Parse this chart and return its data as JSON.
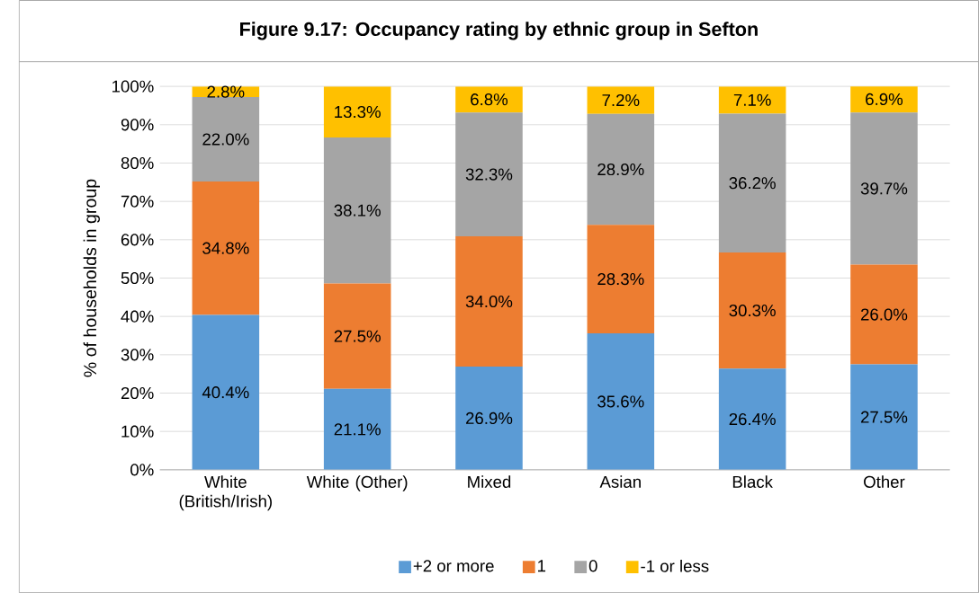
{
  "chart_data": {
    "type": "bar",
    "stacked": true,
    "title": "Figure 9.17: Occupancy rating by ethnic group in Sefton",
    "ylabel": "% of households in group",
    "categories": [
      "White (British/Irish)",
      "White (Other)",
      "Mixed",
      "Asian",
      "Black",
      "Other"
    ],
    "series": [
      {
        "name": "+2 or more",
        "color": "#5b9bd5",
        "values": [
          40.4,
          21.1,
          26.9,
          35.6,
          26.4,
          27.5
        ],
        "value_labels": [
          "40.4%",
          "21.1%",
          "26.9%",
          "35.6%",
          "26.4%",
          "27.5%"
        ]
      },
      {
        "name": "1",
        "color": "#ed7d31",
        "values": [
          34.8,
          27.5,
          34.0,
          28.3,
          30.3,
          26.0
        ],
        "value_labels": [
          "34.8%",
          "27.5%",
          "34.0%",
          "28.3%",
          "30.3%",
          "26.0%"
        ]
      },
      {
        "name": "0",
        "color": "#a5a5a5",
        "values": [
          22.0,
          38.1,
          32.3,
          28.9,
          36.2,
          39.7
        ],
        "value_labels": [
          "22.0%",
          "38.1%",
          "32.3%",
          "28.9%",
          "36.2%",
          "39.7%"
        ]
      },
      {
        "name": "-1 or less",
        "color": "#ffc000",
        "values": [
          2.8,
          13.3,
          6.8,
          7.2,
          7.1,
          6.9
        ],
        "value_labels": [
          "2.8%",
          "13.3%",
          "6.8%",
          "7.2%",
          "7.1%",
          "6.9%"
        ]
      }
    ],
    "ylim": [
      0,
      100
    ],
    "yticks": [
      {
        "value": 0,
        "label": "0%"
      },
      {
        "value": 10,
        "label": "10%"
      },
      {
        "value": 20,
        "label": "20%"
      },
      {
        "value": 30,
        "label": "30%"
      },
      {
        "value": 40,
        "label": "40%"
      },
      {
        "value": 50,
        "label": "50%"
      },
      {
        "value": 60,
        "label": "60%"
      },
      {
        "value": 70,
        "label": "70%"
      },
      {
        "value": 80,
        "label": "80%"
      },
      {
        "value": 90,
        "label": "90%"
      },
      {
        "value": 100,
        "label": "100%"
      }
    ],
    "grid": "y",
    "legend": "bottom"
  }
}
